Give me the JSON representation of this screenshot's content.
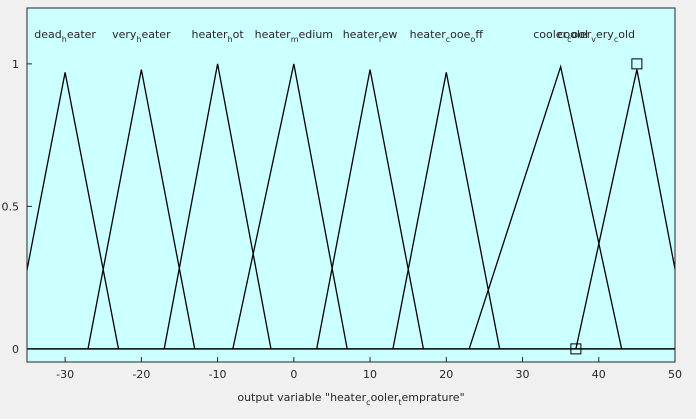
{
  "chart_data": {
    "type": "line",
    "xlabel": [
      "output variable \"heater",
      "c",
      "ooler",
      "t",
      "emprature\""
    ],
    "xlim": [
      -35,
      50
    ],
    "xticks": [
      -30,
      -20,
      -10,
      0,
      10,
      20,
      30,
      40,
      50
    ],
    "ylim": [
      -0.046,
      1.196
    ],
    "yticks": [
      0,
      0.5,
      1
    ],
    "background": "#ccffff",
    "color": "#000000",
    "series": [
      {
        "name": [
          "dead",
          "h",
          "eater"
        ],
        "x": [
          -37,
          -30,
          -23
        ],
        "values": [
          0,
          0.97,
          0
        ]
      },
      {
        "name": [
          "very",
          "h",
          "eater"
        ],
        "x": [
          -27,
          -20,
          -13
        ],
        "values": [
          0,
          0.98,
          0
        ]
      },
      {
        "name": [
          "heater",
          "h",
          "ot"
        ],
        "x": [
          -17,
          -10,
          -3
        ],
        "values": [
          0,
          1,
          0
        ]
      },
      {
        "name": [
          "heater",
          "m",
          "edium"
        ],
        "x": [
          -8,
          0,
          7
        ],
        "values": [
          0,
          1,
          0
        ]
      },
      {
        "name": [
          "heater",
          "f",
          "ew"
        ],
        "x": [
          3,
          10,
          17
        ],
        "values": [
          0,
          0.98,
          0
        ]
      },
      {
        "name": [
          "heater",
          "c",
          "ooe",
          "o",
          "ff"
        ],
        "x": [
          13,
          20,
          27
        ],
        "values": [
          0,
          0.97,
          0
        ]
      },
      {
        "name": [
          "cooler",
          "c",
          "ool"
        ],
        "x": [
          23,
          35,
          43
        ],
        "values": [
          0,
          0.99,
          0
        ]
      },
      {
        "name": [
          "cooler",
          "v",
          "ery",
          "c",
          "old"
        ],
        "x": [
          37,
          45,
          52
        ],
        "values": [
          0,
          0.98,
          0
        ]
      }
    ],
    "markers": {
      "x": [
        37,
        45
      ],
      "values": [
        0,
        1
      ]
    }
  }
}
